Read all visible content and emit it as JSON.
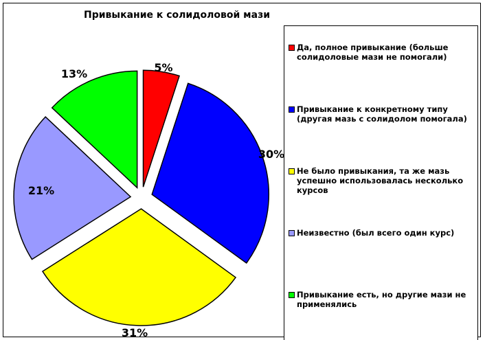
{
  "chart_data": {
    "type": "pie",
    "title": "Привыкание к солидоловой мази",
    "exploded": true,
    "slices": [
      {
        "label": "Да, полное привыкание (больше солидоловые мази не помогали)",
        "value": 5,
        "display": "5%",
        "color": "#ff0000"
      },
      {
        "label": "Привыкание к конкретному типу (другая мазь с солидолом помогала)",
        "value": 30,
        "display": "30%",
        "color": "#0000ff"
      },
      {
        "label": "Не было привыкания, та же мазь успешно использовалась несколько курсов",
        "value": 31,
        "display": "31%",
        "color": "#ffff00"
      },
      {
        "label": "Неизвестно (был всего один курс)",
        "value": 21,
        "display": "21%",
        "color": "#9999ff"
      },
      {
        "label": "Привыкание есть, но другие мази не применялись",
        "value": 13,
        "display": "13%",
        "color": "#00ff00"
      }
    ],
    "legend": "right"
  }
}
